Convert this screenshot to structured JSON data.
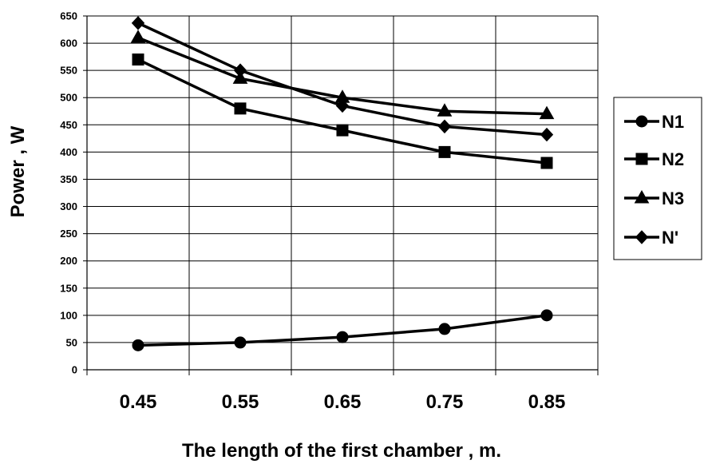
{
  "chart_data": {
    "type": "line",
    "title": "",
    "xlabel": "The length of the first chamber , m.",
    "ylabel": "Power , W",
    "categories": [
      "0.45",
      "0.55",
      "0.65",
      "0.75",
      "0.85"
    ],
    "ylim": [
      0,
      650
    ],
    "y_ticks": [
      0,
      50,
      100,
      150,
      200,
      250,
      300,
      350,
      400,
      450,
      500,
      550,
      600,
      650
    ],
    "grid": true,
    "legend_position": "right",
    "series": [
      {
        "name": "N1",
        "marker": "circle",
        "values": [
          45,
          50,
          60,
          75,
          100
        ]
      },
      {
        "name": "N2",
        "marker": "square",
        "values": [
          570,
          480,
          440,
          400,
          380
        ]
      },
      {
        "name": "N3",
        "marker": "triangle",
        "values": [
          610,
          535,
          500,
          475,
          470
        ]
      },
      {
        "name": "N'",
        "marker": "diamond",
        "values": [
          637,
          550,
          485,
          447,
          432
        ]
      }
    ],
    "line_color": "#000000"
  }
}
